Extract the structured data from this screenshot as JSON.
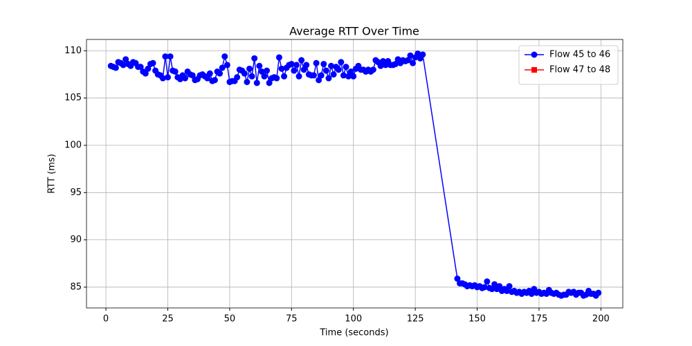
{
  "chart_data": {
    "type": "line",
    "title": "Average RTT Over Time",
    "x_label": "Time (seconds)",
    "y_label": "RTT (ms)",
    "xlim": [
      -7.85,
      208.85
    ],
    "ylim": [
      82.8,
      111.2
    ],
    "xticks": [
      0,
      25,
      50,
      75,
      100,
      125,
      150,
      175,
      200
    ],
    "yticks": [
      85,
      90,
      95,
      100,
      105,
      110
    ],
    "grid": true,
    "legend": "upper right",
    "series": [
      {
        "name": "Flow 45 to 46",
        "color": "#0000ff",
        "marker": "circle",
        "x": [
          2,
          3,
          4,
          5,
          6,
          7,
          8,
          9,
          10,
          11,
          12,
          13,
          14,
          15,
          16,
          17,
          18,
          19,
          20,
          21,
          22,
          23,
          24,
          25,
          26,
          27,
          28,
          29,
          30,
          31,
          32,
          33,
          34,
          35,
          36,
          37,
          38,
          39,
          40,
          41,
          42,
          43,
          44,
          45,
          46,
          47,
          48,
          49,
          50,
          51,
          52,
          53,
          54,
          55,
          56,
          57,
          58,
          59,
          60,
          61,
          62,
          63,
          64,
          65,
          66,
          67,
          68,
          69,
          70,
          71,
          72,
          73,
          74,
          75,
          76,
          77,
          78,
          79,
          80,
          81,
          82,
          83,
          84,
          85,
          86,
          87,
          88,
          89,
          90,
          91,
          92,
          93,
          94,
          95,
          96,
          97,
          98,
          99,
          100,
          101,
          102,
          103,
          104,
          105,
          106,
          107,
          108,
          109,
          110,
          111,
          112,
          113,
          114,
          115,
          116,
          117,
          118,
          119,
          120,
          121,
          122,
          123,
          124,
          125,
          126,
          127,
          128,
          142,
          143,
          144,
          145,
          146,
          147,
          148,
          149,
          150,
          151,
          152,
          153,
          154,
          155,
          156,
          157,
          158,
          159,
          160,
          161,
          162,
          163,
          164,
          165,
          166,
          167,
          168,
          169,
          170,
          171,
          172,
          173,
          174,
          175,
          176,
          177,
          178,
          179,
          180,
          181,
          182,
          183,
          184,
          185,
          186,
          187,
          188,
          189,
          190,
          191,
          192,
          193,
          194,
          195,
          196,
          197,
          198,
          199
        ],
        "values": [
          108.4,
          108.3,
          108.2,
          108.8,
          108.7,
          108.5,
          109.1,
          108.6,
          108.4,
          108.8,
          108.7,
          108.3,
          108.3,
          107.8,
          107.6,
          108.1,
          108.6,
          108.7,
          107.9,
          107.5,
          107.4,
          107.1,
          109.4,
          107.2,
          109.4,
          107.9,
          107.8,
          107.2,
          107.0,
          107.4,
          107.1,
          107.8,
          107.5,
          107.4,
          106.9,
          107.0,
          107.4,
          107.5,
          107.3,
          107.1,
          107.6,
          106.8,
          106.9,
          107.8,
          107.6,
          108.2,
          109.4,
          108.5,
          106.7,
          106.8,
          106.8,
          107.2,
          108.0,
          107.9,
          107.6,
          106.7,
          108.1,
          107.3,
          109.2,
          106.6,
          108.4,
          107.8,
          107.3,
          107.9,
          106.6,
          107.1,
          107.2,
          107.1,
          109.3,
          108.1,
          107.3,
          108.2,
          108.5,
          108.6,
          107.9,
          108.5,
          107.3,
          109.0,
          108.0,
          108.5,
          107.5,
          107.4,
          107.4,
          108.7,
          106.9,
          107.4,
          108.6,
          107.9,
          107.1,
          108.4,
          107.5,
          108.3,
          108.0,
          108.8,
          107.4,
          108.3,
          107.3,
          107.8,
          107.3,
          108.1,
          108.4,
          108.0,
          108.0,
          107.8,
          108.0,
          107.8,
          108.0,
          109.0,
          108.8,
          108.4,
          108.9,
          108.5,
          108.9,
          108.5,
          108.5,
          108.6,
          109.1,
          108.7,
          109.0,
          108.9,
          109.0,
          109.5,
          108.7,
          109.3,
          109.7,
          109.2,
          109.6,
          85.9,
          85.4,
          85.4,
          85.3,
          85.1,
          85.2,
          85.1,
          85.2,
          85.0,
          85.1,
          84.9,
          85.0,
          85.6,
          84.9,
          84.8,
          85.3,
          84.8,
          85.1,
          84.6,
          84.8,
          84.6,
          85.1,
          84.5,
          84.6,
          84.4,
          84.5,
          84.3,
          84.5,
          84.4,
          84.6,
          84.3,
          84.8,
          84.4,
          84.5,
          84.3,
          84.4,
          84.3,
          84.7,
          84.4,
          84.3,
          84.4,
          84.2,
          84.1,
          84.2,
          84.2,
          84.5,
          84.4,
          84.5,
          84.2,
          84.4,
          84.4,
          84.1,
          84.2,
          84.6,
          84.3,
          84.3,
          84.1,
          84.4
        ]
      },
      {
        "name": "Flow 47 to 48",
        "color": "#ff0000",
        "marker": "square",
        "x": [],
        "values": []
      }
    ]
  }
}
